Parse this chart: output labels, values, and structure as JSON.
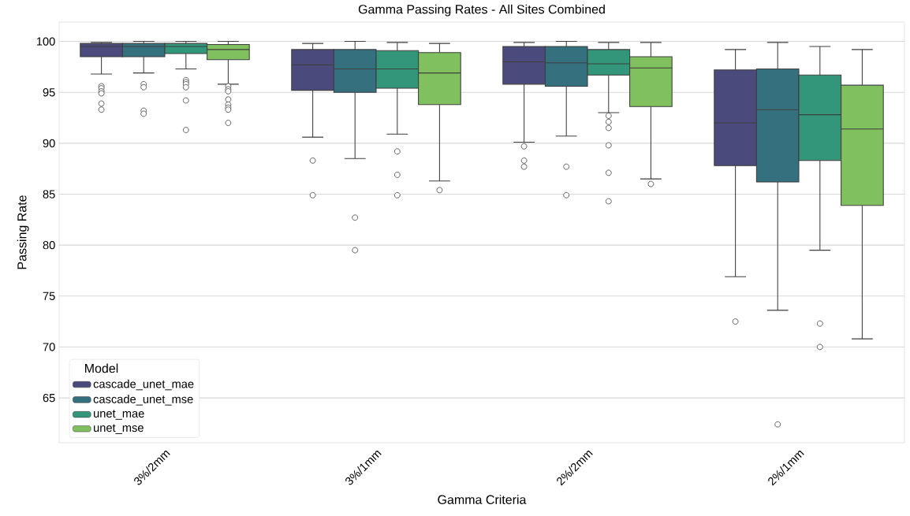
{
  "chart_data": {
    "type": "box",
    "title": "Gamma Passing Rates - All Sites Combined",
    "xlabel": "Gamma Criteria",
    "ylabel": "Passing Rate",
    "legend_title": "Model",
    "categories": [
      "3%/2mm",
      "3%/1mm",
      "2%/2mm",
      "2%/1mm"
    ],
    "series": [
      {
        "name": "cascade_unet_mae",
        "color": "#4a4a7c",
        "boxes": [
          {
            "low": 96.8,
            "q1": 98.5,
            "median": 99.5,
            "q3": 99.8,
            "high": 99.9,
            "outliers": [
              95.6,
              95.4,
              95.1,
              94.9,
              93.9,
              93.3
            ]
          },
          {
            "low": 90.6,
            "q1": 95.2,
            "median": 97.7,
            "q3": 99.2,
            "high": 99.8,
            "outliers": [
              88.3,
              84.9
            ]
          },
          {
            "low": 90.1,
            "q1": 95.8,
            "median": 98.0,
            "q3": 99.5,
            "high": 99.9,
            "outliers": [
              89.7,
              88.3,
              87.7
            ]
          },
          {
            "low": 76.9,
            "q1": 87.8,
            "median": 92.0,
            "q3": 97.2,
            "high": 99.2,
            "outliers": [
              72.5
            ]
          }
        ]
      },
      {
        "name": "cascade_unet_mse",
        "color": "#35707f",
        "boxes": [
          {
            "low": 96.9,
            "q1": 98.5,
            "median": 99.5,
            "q3": 99.8,
            "high": 100,
            "outliers": [
              95.8,
              95.5,
              93.2,
              92.9
            ]
          },
          {
            "low": 88.5,
            "q1": 95.0,
            "median": 97.3,
            "q3": 99.2,
            "high": 100,
            "outliers": [
              82.7,
              79.5
            ]
          },
          {
            "low": 90.7,
            "q1": 95.6,
            "median": 97.9,
            "q3": 99.5,
            "high": 100,
            "outliers": [
              87.7,
              84.9
            ]
          },
          {
            "low": 73.6,
            "q1": 86.2,
            "median": 93.3,
            "q3": 97.3,
            "high": 99.9,
            "outliers": [
              62.4
            ]
          }
        ]
      },
      {
        "name": "unet_mae",
        "color": "#33967a",
        "boxes": [
          {
            "low": 97.3,
            "q1": 98.8,
            "median": 99.5,
            "q3": 99.8,
            "high": 100,
            "outliers": [
              96.2,
              96.0,
              95.8,
              95.5,
              94.2,
              91.3
            ]
          },
          {
            "low": 90.9,
            "q1": 95.4,
            "median": 97.3,
            "q3": 99.1,
            "high": 99.9,
            "outliers": [
              89.2,
              86.9,
              84.9
            ]
          },
          {
            "low": 93.0,
            "q1": 96.7,
            "median": 97.8,
            "q3": 99.2,
            "high": 99.9,
            "outliers": [
              92.7,
              92.1,
              91.5,
              89.8,
              87.1,
              84.3
            ]
          },
          {
            "low": 79.5,
            "q1": 88.3,
            "median": 92.8,
            "q3": 96.7,
            "high": 99.5,
            "outliers": [
              72.3,
              70.0
            ]
          }
        ]
      },
      {
        "name": "unet_mse",
        "color": "#80c05f",
        "boxes": [
          {
            "low": 95.8,
            "q1": 98.2,
            "median": 99.2,
            "q3": 99.7,
            "high": 100,
            "outliers": [
              95.6,
              95.3,
              95.1,
              94.3,
              93.8,
              93.5,
              93.3,
              92.0
            ]
          },
          {
            "low": 86.3,
            "q1": 93.8,
            "median": 96.9,
            "q3": 98.9,
            "high": 99.8,
            "outliers": [
              85.4
            ]
          },
          {
            "low": 86.5,
            "q1": 93.6,
            "median": 97.4,
            "q3": 98.5,
            "high": 99.9,
            "outliers": [
              86.0
            ]
          },
          {
            "low": 70.8,
            "q1": 83.9,
            "median": 91.4,
            "q3": 95.7,
            "high": 99.2
          }
        ]
      }
    ],
    "ylim": [
      60.6,
      101.9
    ],
    "yticks": [
      65,
      70,
      75,
      80,
      85,
      90,
      95,
      100
    ],
    "grid": "y",
    "legend": "bottom left",
    "marker": "circle"
  }
}
